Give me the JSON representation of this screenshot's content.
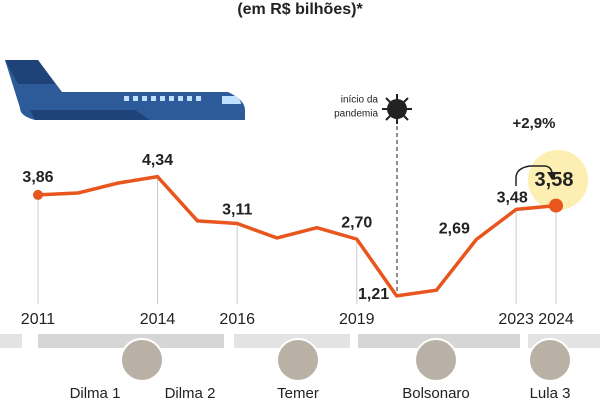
{
  "chart_data": {
    "type": "line",
    "subtitle": "(em R$ bilhões)*",
    "x": [
      2011,
      2012,
      2013,
      2014,
      2015,
      2016,
      2017,
      2018,
      2019,
      2020,
      2021,
      2022,
      2023,
      2024
    ],
    "values": [
      3.86,
      3.91,
      4.17,
      4.34,
      3.18,
      3.11,
      2.73,
      3.0,
      2.7,
      1.21,
      1.36,
      2.69,
      3.48,
      3.58
    ],
    "value_labels": [
      "3,86",
      null,
      null,
      "4,34",
      null,
      "3,11",
      null,
      null,
      "2,70",
      "1,21",
      null,
      "2,69",
      "3,48",
      "3,58"
    ],
    "color": "#e8561e",
    "xticks": [
      2011,
      2014,
      2016,
      2019,
      2023,
      2024
    ],
    "pandemic_label": [
      "início da",
      "pandemia"
    ],
    "change_label": "+2,9%",
    "periods": [
      "Dilma 1",
      "Dilma 2",
      "Temer",
      "Bolsonaro",
      "Lula 3"
    ]
  }
}
